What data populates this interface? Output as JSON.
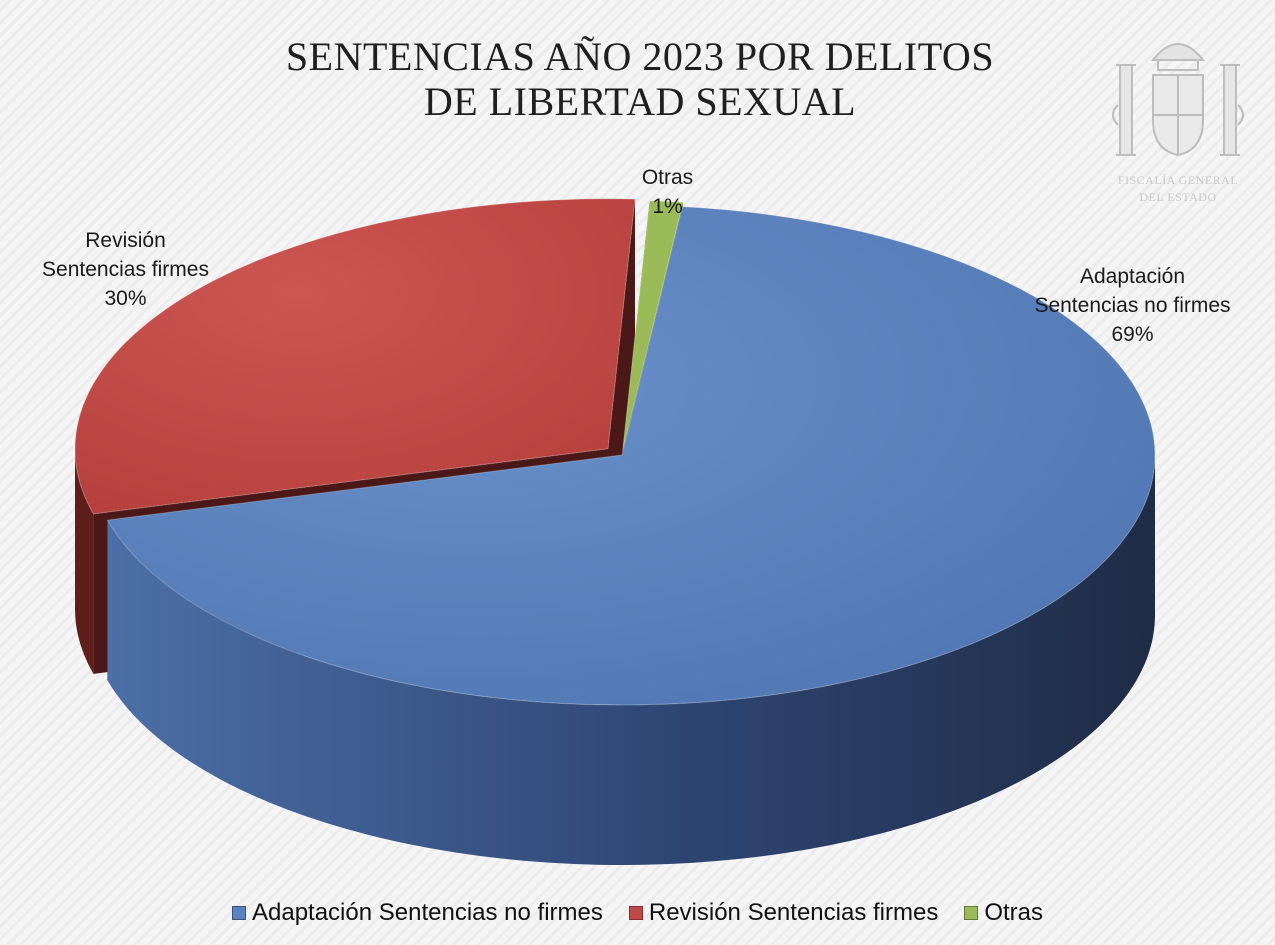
{
  "chart_data": {
    "type": "pie",
    "title_lines": [
      "SENTENCIAS AÑO 2023 POR DELITOS",
      "DE LIBERTAD SEXUAL"
    ],
    "slices": [
      {
        "name": "Adaptación Sentencias no firmes",
        "label_lines": [
          "Adaptación",
          "Sentencias no firmes",
          "69%"
        ],
        "value": 69,
        "percent_label": "69%",
        "color": "#5a82be",
        "side_color": "#2c3f64",
        "shadow_color": "#24304f"
      },
      {
        "name": "Revisión Sentencias firmes",
        "label_lines": [
          "Revisión",
          "Sentencias firmes",
          "30%"
        ],
        "value": 30,
        "percent_label": "30%",
        "color": "#c04a47",
        "side_color": "#5e1f1c",
        "shadow_color": "#4a1816"
      },
      {
        "name": "Otras",
        "label_lines": [
          "Otras",
          "1%"
        ],
        "value": 1,
        "percent_label": "1%",
        "color": "#9bbb59",
        "side_color": "#5e7431",
        "shadow_color": "#4d5f28"
      }
    ],
    "legend": {
      "position": "bottom",
      "items": [
        {
          "label": "Adaptación Sentencias no firmes",
          "color": "#5a82be"
        },
        {
          "label": "Revisión Sentencias firmes",
          "color": "#c04a47"
        },
        {
          "label": "Otras",
          "color": "#9bbb59"
        }
      ]
    },
    "style": "3d-exploded"
  },
  "watermark": {
    "lines": [
      "FISCALÍA GENERAL",
      "DEL ESTADO"
    ],
    "color": "#c8c8c8"
  }
}
